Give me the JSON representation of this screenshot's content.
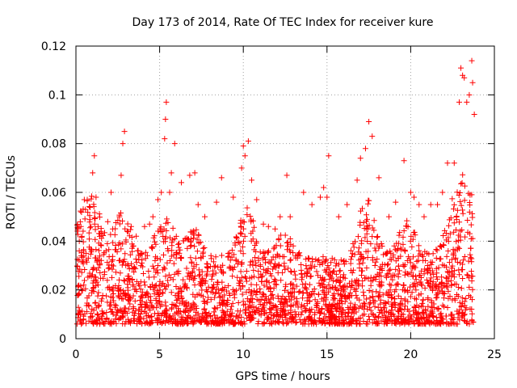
{
  "chart_data": {
    "type": "scatter",
    "title": "Day 173 of 2014, Rate Of TEC Index for receiver kure",
    "xlabel": "GPS time / hours",
    "ylabel": "ROTI / TECUs",
    "xlim": [
      0,
      25
    ],
    "ylim": [
      0,
      0.12
    ],
    "x_ticks": [
      0,
      5,
      10,
      15,
      20,
      25
    ],
    "y_ticks": [
      0,
      0.02,
      0.04,
      0.06,
      0.08,
      0.1,
      0.12
    ],
    "x_tick_labels": [
      "0",
      "5",
      "10",
      "15",
      "20",
      "25"
    ],
    "y_tick_labels": [
      "0",
      "0.02",
      "0.04",
      "0.06",
      "0.08",
      "0.1",
      "0.12"
    ],
    "grid": true,
    "marker": "+",
    "marker_color": "#ff0000",
    "series": [
      {
        "name": "ROTI",
        "points": [
          [
            0.1,
            0.045
          ],
          [
            0.2,
            0.04
          ],
          [
            0.3,
            0.046
          ],
          [
            0.5,
            0.057
          ],
          [
            0.6,
            0.035
          ],
          [
            0.9,
            0.046
          ],
          [
            1.0,
            0.068
          ],
          [
            1.1,
            0.075
          ],
          [
            1.2,
            0.058
          ],
          [
            1.5,
            0.044
          ],
          [
            1.9,
            0.048
          ],
          [
            2.1,
            0.06
          ],
          [
            2.2,
            0.045
          ],
          [
            2.6,
            0.05
          ],
          [
            2.7,
            0.067
          ],
          [
            2.8,
            0.08
          ],
          [
            2.9,
            0.085
          ],
          [
            3.3,
            0.046
          ],
          [
            3.6,
            0.042
          ],
          [
            4.1,
            0.046
          ],
          [
            4.4,
            0.047
          ],
          [
            4.6,
            0.05
          ],
          [
            4.9,
            0.057
          ],
          [
            5.1,
            0.06
          ],
          [
            5.3,
            0.082
          ],
          [
            5.35,
            0.09
          ],
          [
            5.4,
            0.097
          ],
          [
            5.6,
            0.06
          ],
          [
            5.7,
            0.068
          ],
          [
            5.9,
            0.08
          ],
          [
            6.3,
            0.064
          ],
          [
            6.8,
            0.067
          ],
          [
            7.1,
            0.068
          ],
          [
            7.3,
            0.055
          ],
          [
            7.7,
            0.05
          ],
          [
            8.4,
            0.056
          ],
          [
            8.7,
            0.066
          ],
          [
            9.4,
            0.058
          ],
          [
            9.9,
            0.07
          ],
          [
            10.0,
            0.079
          ],
          [
            10.1,
            0.075
          ],
          [
            10.3,
            0.081
          ],
          [
            10.5,
            0.065
          ],
          [
            10.8,
            0.057
          ],
          [
            11.2,
            0.047
          ],
          [
            11.5,
            0.046
          ],
          [
            11.9,
            0.045
          ],
          [
            12.2,
            0.05
          ],
          [
            12.6,
            0.067
          ],
          [
            12.8,
            0.05
          ],
          [
            13.6,
            0.06
          ],
          [
            14.1,
            0.055
          ],
          [
            14.6,
            0.058
          ],
          [
            14.8,
            0.062
          ],
          [
            15.0,
            0.058
          ],
          [
            15.1,
            0.075
          ],
          [
            15.7,
            0.05
          ],
          [
            16.2,
            0.055
          ],
          [
            16.8,
            0.065
          ],
          [
            17.0,
            0.074
          ],
          [
            17.3,
            0.078
          ],
          [
            17.5,
            0.089
          ],
          [
            17.7,
            0.083
          ],
          [
            18.1,
            0.066
          ],
          [
            18.7,
            0.05
          ],
          [
            19.1,
            0.056
          ],
          [
            19.6,
            0.073
          ],
          [
            20.0,
            0.06
          ],
          [
            20.2,
            0.058
          ],
          [
            20.5,
            0.055
          ],
          [
            20.8,
            0.05
          ],
          [
            21.2,
            0.055
          ],
          [
            21.6,
            0.055
          ],
          [
            21.9,
            0.06
          ],
          [
            22.2,
            0.072
          ],
          [
            22.6,
            0.072
          ],
          [
            22.9,
            0.097
          ],
          [
            23.0,
            0.111
          ],
          [
            23.1,
            0.108
          ],
          [
            23.2,
            0.107
          ],
          [
            23.35,
            0.097
          ],
          [
            23.5,
            0.1
          ],
          [
            23.65,
            0.114
          ],
          [
            23.7,
            0.105
          ],
          [
            23.8,
            0.092
          ]
        ]
      }
    ]
  }
}
